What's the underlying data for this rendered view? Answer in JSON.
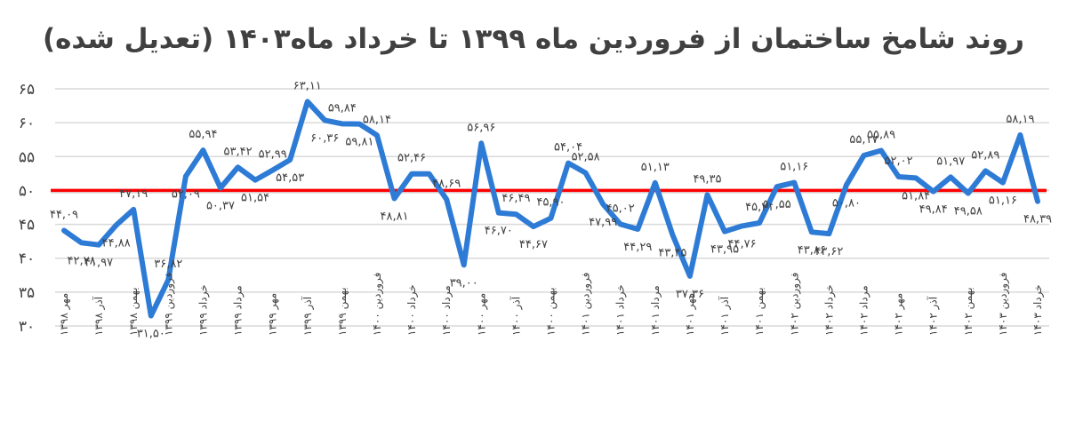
{
  "chart_data": {
    "type": "line",
    "title": "روند شامخ ساختمان از فروردین ماه ۱۳۹۹ تا خرداد ماه۱۴۰۳ (تعدیل شده)",
    "xlabel": "",
    "ylabel": "",
    "ylim": [
      30,
      65
    ],
    "yticks": [
      "۳۰",
      "۳۵",
      "۴۰",
      "۴۵",
      "۵۰",
      "۵۵",
      "۶۰",
      "۶۵"
    ],
    "ytick_values": [
      30,
      35,
      40,
      45,
      50,
      55,
      60,
      65
    ],
    "grid": true,
    "reference_line": {
      "value": 50,
      "color": "#ff0000"
    },
    "series_color": "#2e7bd6",
    "x": [
      "مهر ۱۳۹۸",
      "",
      "آذر ۱۳۹۸",
      "",
      "بهمن ۱۳۹۸",
      "",
      "فروردین ۱۳۹۹",
      "",
      "خرداد ۱۳۹۹",
      "",
      "مرداد ۱۳۹۹",
      "",
      "مهر ۱۳۹۹",
      "",
      "آذر ۱۳۹۹",
      "",
      "بهمن ۱۳۹۹",
      "",
      "فروردین ۱۴۰۰",
      "",
      "خرداد ۱۴۰۰",
      "",
      "مرداد ۱۴۰۰",
      "",
      "مهر ۱۴۰۰",
      "",
      "آذر ۱۴۰۰",
      "",
      "بهمن ۱۴۰۰",
      "",
      "فروردین ۱۴۰۱",
      "",
      "خرداد ۱۴۰۱",
      "",
      "مرداد ۱۴۰۱",
      "",
      "مهر ۱۴۰۱",
      "",
      "آذر ۱۴۰۱",
      "",
      "بهمن ۱۴۰۱",
      "",
      "فروردین ۱۴۰۲",
      "",
      "خرداد ۱۴۰۲",
      "",
      "مرداد ۱۴۰۲",
      "",
      "مهر ۱۴۰۲",
      "",
      "آذر ۱۴۰۲",
      "",
      "بهمن ۱۴۰۲",
      "",
      "فروردین ۱۴۰۳",
      "",
      "خرداد ۱۴۰۳"
    ],
    "series": [
      {
        "name": "شامخ ساختمان",
        "values": [
          44.09,
          42.28,
          41.97,
          44.88,
          47.19,
          31.5,
          36.82,
          52.09,
          55.94,
          50.37,
          53.42,
          51.54,
          52.99,
          54.53,
          63.11,
          60.36,
          59.84,
          59.81,
          58.14,
          48.81,
          52.46,
          52.46,
          48.69,
          39.0,
          56.96,
          46.7,
          46.49,
          44.67,
          45.9,
          54.04,
          52.58,
          47.99,
          45.02,
          44.29,
          51.13,
          43.45,
          37.36,
          49.35,
          43.95,
          44.76,
          45.21,
          50.55,
          51.16,
          43.86,
          43.62,
          50.8,
          55.17,
          55.89,
          52.02,
          51.84,
          49.84,
          51.97,
          49.58,
          52.89,
          51.16,
          58.19,
          48.39
        ],
        "labels": [
          "۴۴,۰۹",
          "۴۲,۲۸",
          "۴۱,۹۷",
          "۴۴,۸۸",
          "۴۷,۱۹",
          "۳۱,۵۰",
          "۳۶,۸۲",
          "۵۲,۰۹",
          "۵۵,۹۴",
          "۵۰,۳۷",
          "۵۳,۴۲",
          "۵۱,۵۴",
          "۵۲,۹۹",
          "۵۴,۵۳",
          "۶۳,۱۱",
          "۶۰,۳۶",
          "۵۹,۸۴",
          "۵۹,۸۱",
          "۵۸,۱۴",
          "۴۸,۸۱",
          "۵۲,۴۶",
          "",
          "۴۸,۶۹",
          "۳۹,۰۰",
          "۵۶,۹۶",
          "۴۶,۷۰",
          "۴۶,۴۹",
          "۴۴,۶۷",
          "۴۵,۹۰",
          "۵۴,۰۴",
          "۵۲,۵۸",
          "۴۷,۹۹",
          "۴۵,۰۲",
          "۴۴,۲۹",
          "۵۱,۱۳",
          "۴۳,۴۵",
          "۳۷,۳۶",
          "۴۹,۳۵",
          "۴۳,۹۵",
          "۴۴,۷۶",
          "۴۵,۲۱",
          "۵۰,۵۵",
          "۵۱,۱۶",
          "۴۳,۸۶",
          "۴۳,۶۲",
          "۵۰,۸۰",
          "۵۵,۱۷",
          "۵۵,۸۹",
          "۵۲,۰۲",
          "۵۱,۸۴",
          "۴۹,۸۴",
          "۵۱,۹۷",
          "۴۹,۵۸",
          "۵۲,۸۹",
          "۵۱,۱۶",
          "۵۸,۱۹",
          "۴۸,۳۹"
        ]
      }
    ]
  }
}
